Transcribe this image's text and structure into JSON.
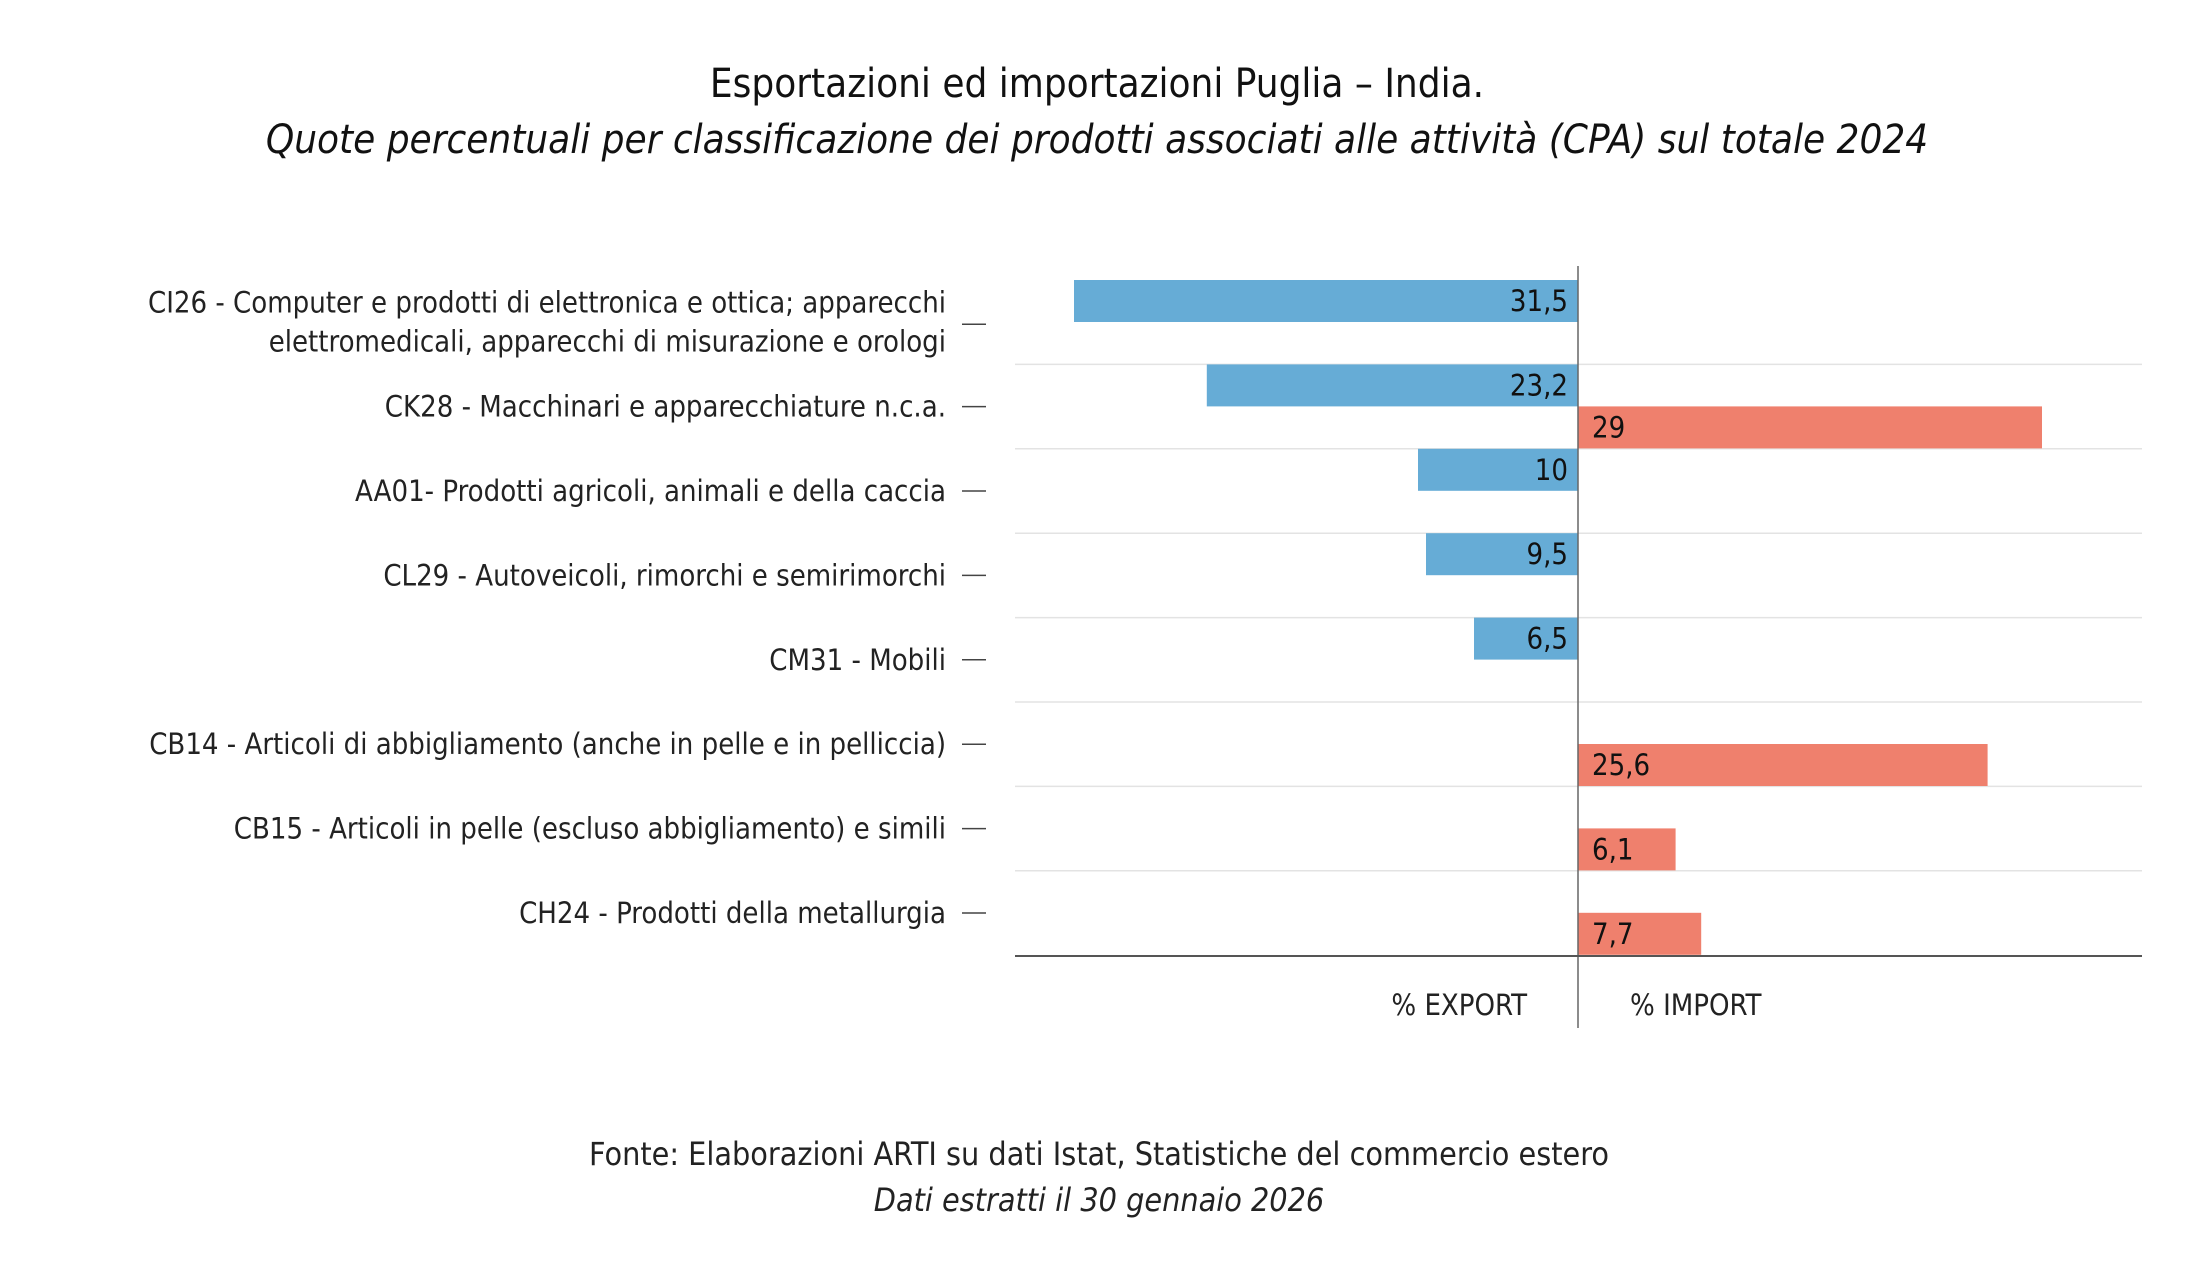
{
  "chart_data": {
    "type": "bar",
    "orientation": "horizontal-diverging",
    "title": "Esportazioni ed importazioni Puglia – India.",
    "subtitle": "Quote percentuali per classificazione dei prodotti associati alle attività (CPA) sul totale 2024",
    "categories": [
      [
        "CI26 - Computer e prodotti di elettronica e ottica; apparecchi",
        "elettromedicali, apparecchi di misurazione e orologi"
      ],
      [
        "CK28 - Macchinari e apparecchiature n.c.a."
      ],
      [
        "AA01- Prodotti agricoli, animali e della caccia"
      ],
      [
        "CL29 - Autoveicoli, rimorchi e semirimorchi"
      ],
      [
        "CM31 - Mobili"
      ],
      [
        "CB14 - Articoli di abbigliamento (anche in pelle e in pelliccia)"
      ],
      [
        "CB15 - Articoli in pelle (escluso abbigliamento) e simili"
      ],
      [
        "CH24 - Prodotti della metallurgia"
      ]
    ],
    "series": [
      {
        "name": "% EXPORT",
        "color": "#66acd6",
        "values": [
          31.5,
          23.2,
          10,
          9.5,
          6.5,
          null,
          null,
          null
        ],
        "labels": [
          "31,5",
          "23,2",
          "10",
          "9,5",
          "6,5",
          "",
          "",
          ""
        ]
      },
      {
        "name": "% IMPORT",
        "color": "#ef806d",
        "values": [
          null,
          29,
          null,
          null,
          null,
          25.6,
          6.1,
          7.7
        ],
        "labels": [
          "",
          "29",
          "",
          "",
          "",
          "25,6",
          "6,1",
          "7,7"
        ]
      }
    ],
    "xlabel_left": "% EXPORT",
    "xlabel_right": "% IMPORT",
    "xlim": [
      -35,
      35
    ],
    "grid": true
  },
  "footer": {
    "source": "Fonte: Elaborazioni ARTI su dati Istat, Statistiche del commercio estero",
    "date": "Dati estratti il 30 gennaio 2026"
  }
}
